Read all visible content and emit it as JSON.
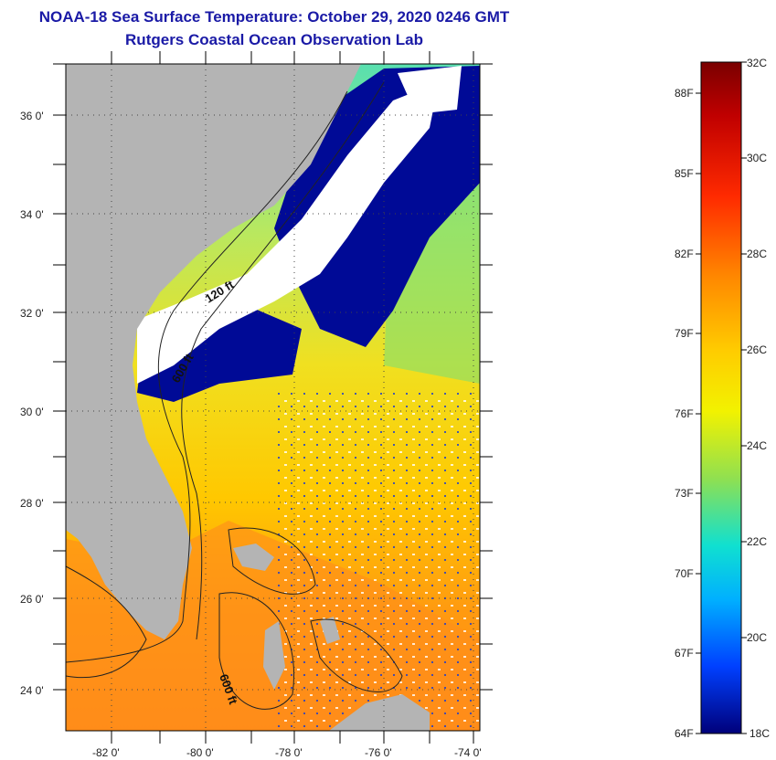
{
  "header": {
    "title": "NOAA-18 Sea Surface Temperature:  October 29, 2020 0246 GMT",
    "subtitle": "Rutgers Coastal Ocean Observation Lab"
  },
  "map": {
    "lat_labels": [
      "36 0'",
      "34 0'",
      "32 0'",
      "30 0'",
      "28 0'",
      "26 0'",
      "24 0'"
    ],
    "lon_labels": [
      "-82 0'",
      "-80 0'",
      "-78 0'",
      "-76 0'",
      "-74 0'"
    ],
    "contour_labels": [
      "120 ft",
      "600 ft",
      "600 ft"
    ],
    "colors": {
      "land": "#b4b4b4",
      "cloud": "#ffffff",
      "deep_blue": "#000a96"
    }
  },
  "colorbar": {
    "celsius_labels": [
      "32C",
      "30C",
      "28C",
      "26C",
      "24C",
      "22C",
      "20C",
      "18C"
    ],
    "fahrenheit_labels": [
      "88F",
      "85F",
      "82F",
      "79F",
      "76F",
      "73F",
      "70F",
      "67F",
      "64F"
    ],
    "range_celsius": [
      18,
      32
    ]
  }
}
